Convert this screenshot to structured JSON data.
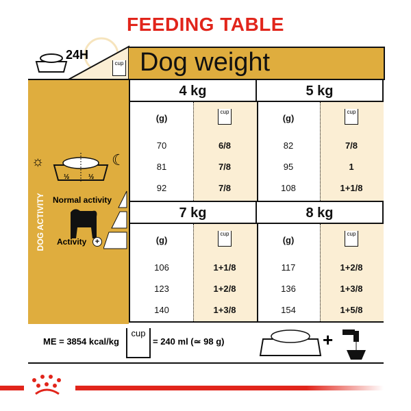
{
  "title": "FEEDING TABLE",
  "header": {
    "period": "24H",
    "cup_label": "cup",
    "dog_weight": "Dog weight"
  },
  "left_panel": {
    "vertical_label": "DOG ACTIVITY",
    "split_left": "½",
    "split_right": "½",
    "normal_activity": "Normal activity",
    "activity_plus": "Activity"
  },
  "column_headers": {
    "grams": "(g)",
    "cup": "cup"
  },
  "weights": [
    {
      "label": "4 kg",
      "rows": [
        [
          "70",
          "6/8"
        ],
        [
          "81",
          "7/8"
        ],
        [
          "92",
          "7/8"
        ]
      ]
    },
    {
      "label": "5 kg",
      "rows": [
        [
          "82",
          "7/8"
        ],
        [
          "95",
          "1"
        ],
        [
          "108",
          "1+1/8"
        ]
      ]
    },
    {
      "label": "7 kg",
      "rows": [
        [
          "106",
          "1+1/8"
        ],
        [
          "123",
          "1+2/8"
        ],
        [
          "140",
          "1+3/8"
        ]
      ]
    },
    {
      "label": "8 kg",
      "rows": [
        [
          "117",
          "1+2/8"
        ],
        [
          "136",
          "1+3/8"
        ],
        [
          "154",
          "1+5/8"
        ]
      ]
    }
  ],
  "footer": {
    "energy": "ME = 3854 kcal/kg",
    "cup_label": "cup",
    "cup_equiv": "= 240 ml (≃ 98 g)",
    "plus": "+"
  },
  "colors": {
    "title_red": "#e1251b",
    "gold": "#dfad3e",
    "cream": "#fbeed4"
  }
}
